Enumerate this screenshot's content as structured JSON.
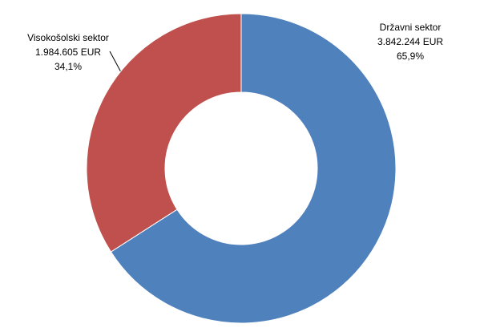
{
  "chart_data": {
    "type": "donut",
    "categories": [
      "Državni sektor",
      "Visokošolski sektor"
    ],
    "values": [
      3842244,
      1984605
    ],
    "value_labels": [
      "3.842.244 EUR",
      "1.984.605 EUR"
    ],
    "percent_labels": [
      "65,9%",
      "34,1%"
    ],
    "colors": [
      "#4f81bd",
      "#c0504d"
    ]
  }
}
